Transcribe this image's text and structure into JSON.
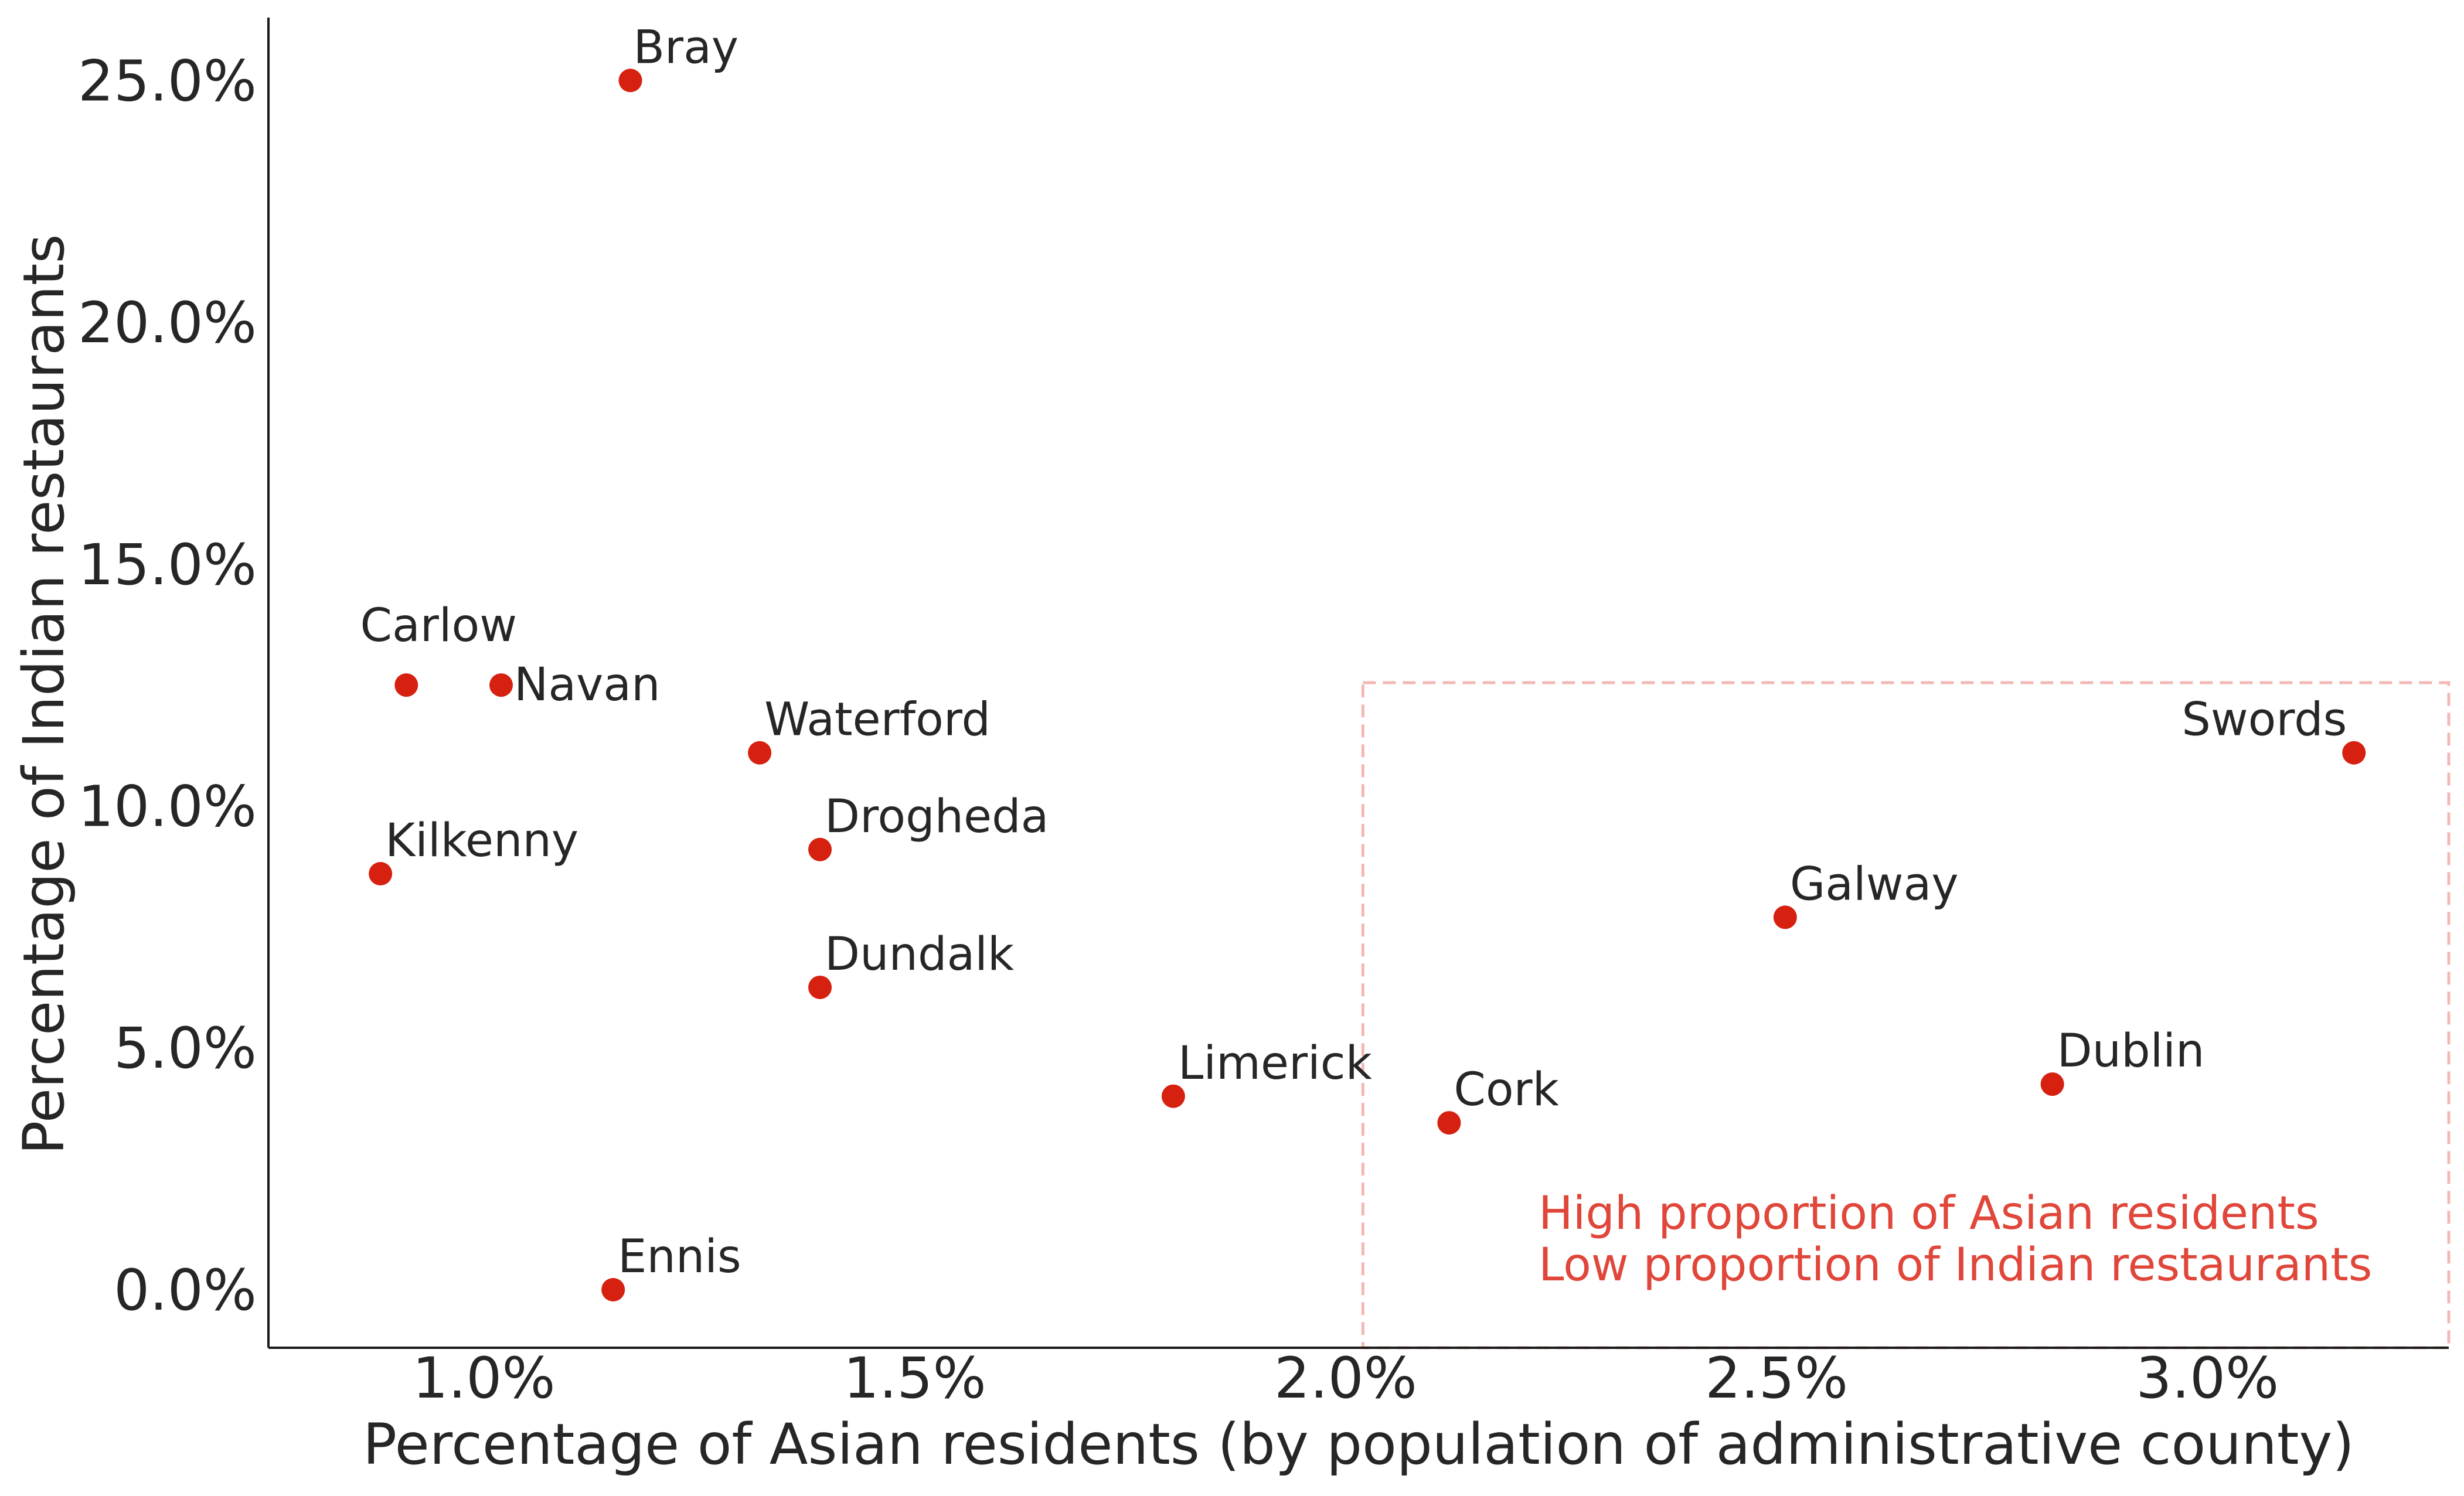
{
  "chart_data": {
    "type": "scatter",
    "title": "",
    "xlabel": "Percentage of Asian residents (by population of administrative county)",
    "ylabel": "Percentage of Indian restaurants",
    "xlim": [
      0.75,
      3.28
    ],
    "ylim": [
      -1.2,
      26.3
    ],
    "x_ticks": [
      1.0,
      1.5,
      2.0,
      2.5,
      3.0
    ],
    "x_tick_labels": [
      "1.0%",
      "1.5%",
      "2.0%",
      "2.5%",
      "3.0%"
    ],
    "y_ticks": [
      0,
      5,
      10,
      15,
      20,
      25
    ],
    "y_tick_labels": [
      "0.0%",
      "5.0%",
      "10.0%",
      "15.0%",
      "20.0%",
      "25.0%"
    ],
    "grid": false,
    "point_color": "#d62010",
    "points": [
      {
        "label": "Bray",
        "x": 1.17,
        "y": 25.0
      },
      {
        "label": "Carlow",
        "x": 0.91,
        "y": 12.5
      },
      {
        "label": "Navan",
        "x": 1.02,
        "y": 12.5
      },
      {
        "label": "Waterford",
        "x": 1.32,
        "y": 11.1
      },
      {
        "label": "Kilkenny",
        "x": 0.88,
        "y": 8.6
      },
      {
        "label": "Drogheda",
        "x": 1.39,
        "y": 9.1
      },
      {
        "label": "Dundalk",
        "x": 1.39,
        "y": 6.25
      },
      {
        "label": "Limerick",
        "x": 1.8,
        "y": 4.0
      },
      {
        "label": "Ennis",
        "x": 1.15,
        "y": 0.0
      },
      {
        "label": "Cork",
        "x": 2.12,
        "y": 3.45
      },
      {
        "label": "Galway",
        "x": 2.51,
        "y": 7.7
      },
      {
        "label": "Dublin",
        "x": 2.82,
        "y": 4.25
      },
      {
        "label": "Swords",
        "x": 3.17,
        "y": 11.1
      }
    ],
    "highlight_region": {
      "x_range": [
        2.02,
        3.28
      ],
      "y_range": [
        -1.2,
        12.55
      ],
      "color": "#f2b8b5",
      "line_style": "dashed"
    },
    "annotation": {
      "lines": [
        "High proportion of Asian residents",
        "Low proportion of Indian restaurants"
      ],
      "color": "#e0463a"
    }
  }
}
